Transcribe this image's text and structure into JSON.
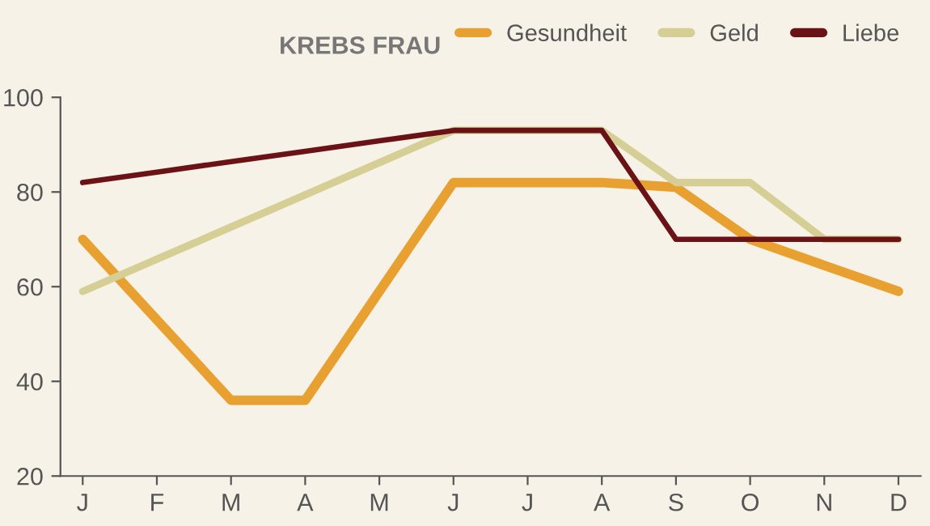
{
  "chart_data": {
    "type": "line",
    "title": "KREBS FRAU",
    "categories": [
      "J",
      "F",
      "M",
      "A",
      "M",
      "J",
      "J",
      "A",
      "S",
      "O",
      "N",
      "D"
    ],
    "series": [
      {
        "name": "Gesundheit",
        "color": "#e8a030",
        "values": [
          70,
          53,
          36,
          36,
          59,
          82,
          82,
          82,
          81,
          70,
          64.5,
          59
        ]
      },
      {
        "name": "Geld",
        "color": "#d6cf95",
        "values": [
          59,
          65.8,
          72.6,
          79.4,
          86.2,
          93,
          93,
          93,
          82,
          82,
          70,
          70
        ]
      },
      {
        "name": "Liebe",
        "color": "#6b1216",
        "values": [
          82,
          84.2,
          86.4,
          88.6,
          90.8,
          93,
          93,
          93,
          70,
          70,
          70,
          70
        ]
      }
    ],
    "ylim": [
      20,
      100
    ],
    "yticks": [
      20,
      40,
      60,
      80,
      100
    ],
    "grid": false,
    "legend": "top right",
    "line_style": "solid",
    "marker": "none"
  }
}
